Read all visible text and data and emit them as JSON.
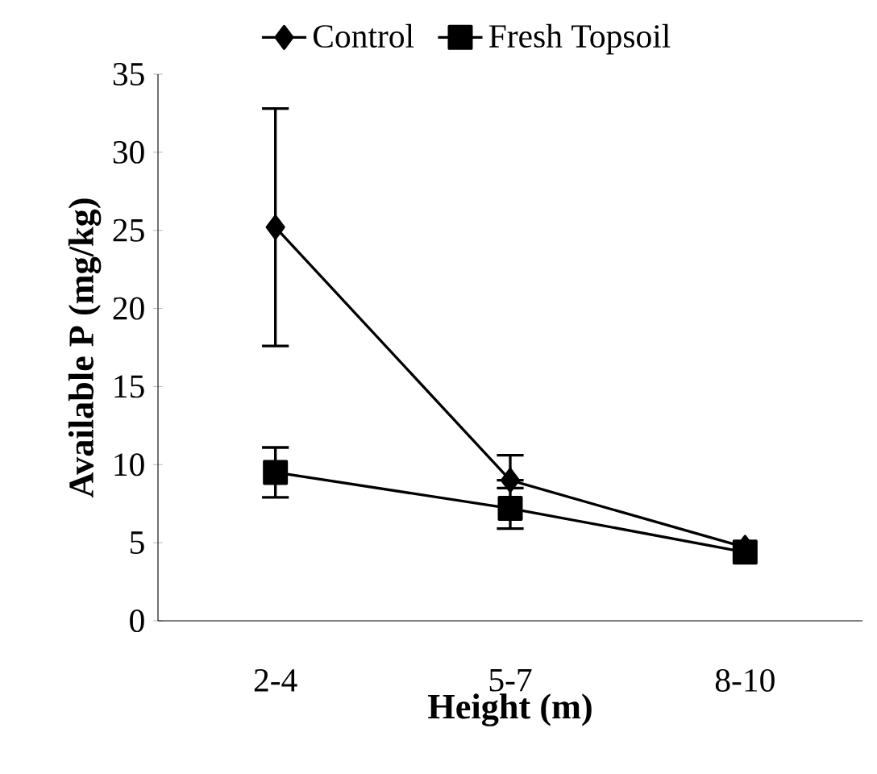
{
  "chart_data": {
    "type": "line",
    "xlabel": "Height (m)",
    "ylabel": "Available P (mg/kg)",
    "categories": [
      "2-4",
      "5-7",
      "8-10"
    ],
    "ylim": [
      0,
      35
    ],
    "yticks": [
      0,
      5,
      10,
      15,
      20,
      25,
      30,
      35
    ],
    "grid": false,
    "legend": "top",
    "series": [
      {
        "name": "Control",
        "color": "#000000",
        "marker": "diamond",
        "values": [
          25.2,
          9.0,
          4.7
        ],
        "errors": [
          7.6,
          [
            9.0,
            10.6
          ],
          null
        ]
      },
      {
        "name": "Fresh Topsoil",
        "color": "#000000",
        "marker": "square",
        "values": [
          9.5,
          7.2,
          4.4
        ],
        "errors": [
          1.6,
          [
            5.9,
            8.5
          ],
          null
        ]
      }
    ]
  }
}
